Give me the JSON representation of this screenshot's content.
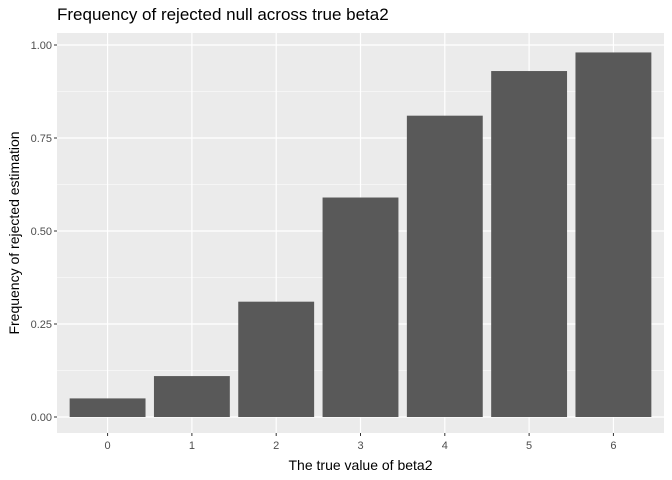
{
  "chart_data": {
    "type": "bar",
    "title": "Frequency of rejected null across true beta2",
    "xlabel": "The true value of beta2",
    "ylabel": "Frequency of rejected estimation",
    "categories": [
      "0",
      "1",
      "2",
      "3",
      "4",
      "5",
      "6"
    ],
    "values": [
      0.05,
      0.11,
      0.31,
      0.59,
      0.81,
      0.93,
      0.98
    ],
    "ylim": [
      0,
      1.05
    ],
    "yticks": [
      0,
      0.25,
      0.5,
      0.75,
      1
    ],
    "ytick_labels": [
      "0.00",
      "0.25",
      "0.50",
      "0.75",
      "1.00"
    ],
    "grid": true,
    "colors": {
      "panel": "#ebebeb",
      "grid": "#ffffff",
      "bar": "#595959",
      "tick_text": "#4d4d4d",
      "tick_mark": "#333333",
      "text": "#000000"
    }
  }
}
